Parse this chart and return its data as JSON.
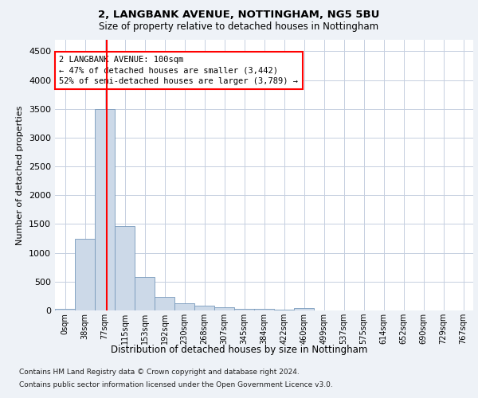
{
  "title1": "2, LANGBANK AVENUE, NOTTINGHAM, NG5 5BU",
  "title2": "Size of property relative to detached houses in Nottingham",
  "xlabel": "Distribution of detached houses by size in Nottingham",
  "ylabel": "Number of detached properties",
  "bar_color": "#ccd9e8",
  "bar_edge_color": "#7799bb",
  "bin_labels": [
    "0sqm",
    "38sqm",
    "77sqm",
    "115sqm",
    "153sqm",
    "192sqm",
    "230sqm",
    "268sqm",
    "307sqm",
    "345sqm",
    "384sqm",
    "422sqm",
    "460sqm",
    "499sqm",
    "537sqm",
    "575sqm",
    "614sqm",
    "652sqm",
    "690sqm",
    "729sqm",
    "767sqm"
  ],
  "bar_values": [
    28,
    1250,
    3500,
    1460,
    585,
    232,
    122,
    88,
    57,
    32,
    22,
    18,
    42,
    6,
    0,
    4,
    0,
    0,
    0,
    0,
    0
  ],
  "red_line_x": 2.605,
  "ylim": [
    0,
    4700
  ],
  "yticks": [
    0,
    500,
    1000,
    1500,
    2000,
    2500,
    3000,
    3500,
    4000,
    4500
  ],
  "annotation_text": "2 LANGBANK AVENUE: 100sqm\n← 47% of detached houses are smaller (3,442)\n52% of semi-detached houses are larger (3,789) →",
  "footer1": "Contains HM Land Registry data © Crown copyright and database right 2024.",
  "footer2": "Contains public sector information licensed under the Open Government Licence v3.0.",
  "bg_color": "#eef2f7",
  "plot_bg": "#ffffff",
  "grid_color": "#c5cfe0"
}
